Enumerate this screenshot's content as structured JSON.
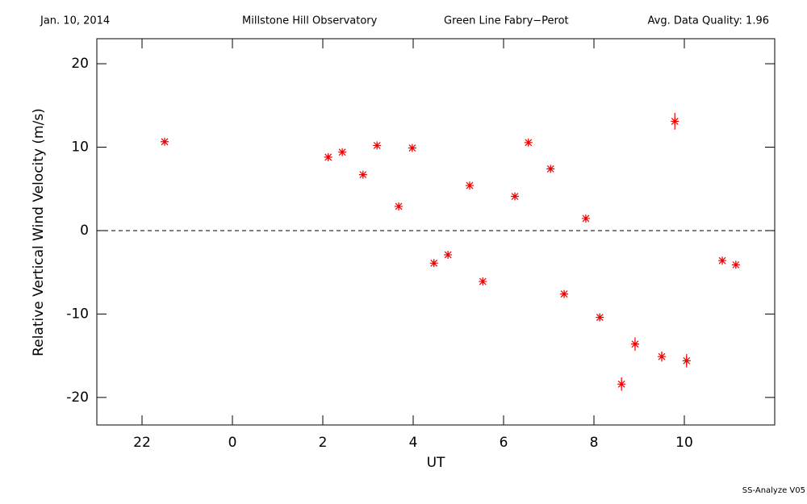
{
  "chart_data": {
    "type": "scatter",
    "header": [
      "Jan. 10, 2014",
      "Millstone Hill Observatory",
      "Green Line Fabry−Perot",
      "Avg. Data Quality: 1.96"
    ],
    "footer": "SS-Analyze V05",
    "xlabel": "UT",
    "ylabel": "Relative Vertical Wind Velocity (m/s)",
    "xlim": [
      -3,
      12
    ],
    "ylim": [
      -23.3,
      23.0
    ],
    "xticks": [
      {
        "value": -2,
        "label": "22"
      },
      0,
      2,
      4,
      6,
      8,
      10
    ],
    "yticks": [
      -20,
      -10,
      0,
      10,
      20
    ],
    "reference_line": 0,
    "series": [
      {
        "color": "#ee0000",
        "x": [
          -1.5,
          2.12,
          2.43,
          2.89,
          3.2,
          3.68,
          3.98,
          4.46,
          4.77,
          5.25,
          5.54,
          6.25,
          6.55,
          7.04,
          7.34,
          7.82,
          8.13,
          8.61,
          8.91,
          9.5,
          9.79,
          10.05,
          10.84,
          11.14
        ],
        "values": [
          10.65,
          8.8,
          9.4,
          6.7,
          10.2,
          2.9,
          9.9,
          -3.9,
          -2.9,
          5.4,
          -6.1,
          4.1,
          10.55,
          7.4,
          -7.6,
          1.45,
          -10.4,
          -18.4,
          -13.6,
          -15.1,
          13.1,
          -15.6,
          -3.6,
          -4.1
        ],
        "errors": [
          0.3,
          0.3,
          0.3,
          0.3,
          0.3,
          0.3,
          0.3,
          0.3,
          0.3,
          0.3,
          0.3,
          0.3,
          0.3,
          0.3,
          0.3,
          0.3,
          0.4,
          0.8,
          0.8,
          0.6,
          1.0,
          0.8,
          0.3,
          0.3
        ]
      }
    ]
  }
}
